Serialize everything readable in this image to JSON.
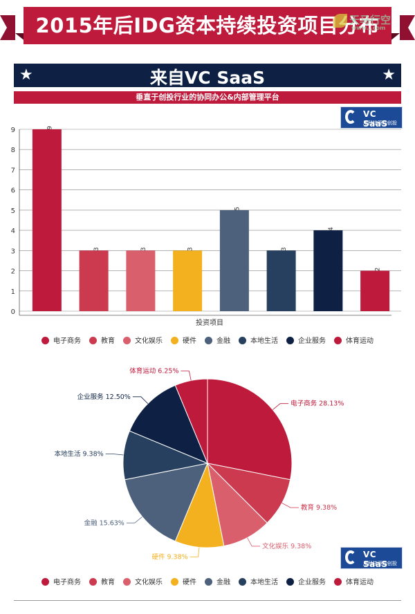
{
  "banner": {
    "title": "2015年后IDG资本持续投资项目分布",
    "watermark": "天马行空",
    "watermark_url": "www...com"
  },
  "subhead": {
    "title": "来自VC SaaS",
    "star_icon": "★"
  },
  "tagline": "垂直于创投行业的协同办公&内部管理平台",
  "logo": {
    "name": "VC SaaS",
    "sub": "用科技驱动创投",
    "bg_color": "#1c4a96"
  },
  "chart_data": [
    {
      "type": "bar",
      "categories": [
        "电子商务",
        "教育",
        "文化娱乐",
        "硬件",
        "金融",
        "本地生活",
        "企业服务",
        "体育运动"
      ],
      "values": [
        9,
        3,
        3,
        3,
        5,
        3,
        4,
        2
      ],
      "colors": [
        "#be1a3b",
        "#cc3a4f",
        "#d95f6d",
        "#f3b01f",
        "#4d617c",
        "#27405f",
        "#0e2144",
        "#be1a3b"
      ],
      "xlabel": "投资项目",
      "ylabel": "",
      "ylim": [
        0,
        9
      ],
      "yticks": [
        0,
        1,
        2,
        3,
        4,
        5,
        6,
        7,
        8,
        9
      ],
      "grid": true,
      "data_labels": true,
      "legend": "bottom"
    },
    {
      "type": "pie",
      "categories": [
        "电子商务",
        "教育",
        "文化娱乐",
        "硬件",
        "金融",
        "本地生活",
        "企业服务",
        "体育运动"
      ],
      "values": [
        28.13,
        9.38,
        9.38,
        9.38,
        15.63,
        9.38,
        12.5,
        6.25
      ],
      "labels": [
        "电子商务 28.13%",
        "教育 9.38%",
        "文化娱乐 9.38%",
        "硬件 9.38%",
        "金融 15.63%",
        "本地生活 9.38%",
        "企业服务 12.50%",
        "体育运动 6.25%"
      ],
      "colors": [
        "#be1a3b",
        "#cc3a4f",
        "#d95f6d",
        "#f3b01f",
        "#4d617c",
        "#27405f",
        "#0e2144",
        "#be1a3b"
      ],
      "legend": "bottom"
    }
  ]
}
